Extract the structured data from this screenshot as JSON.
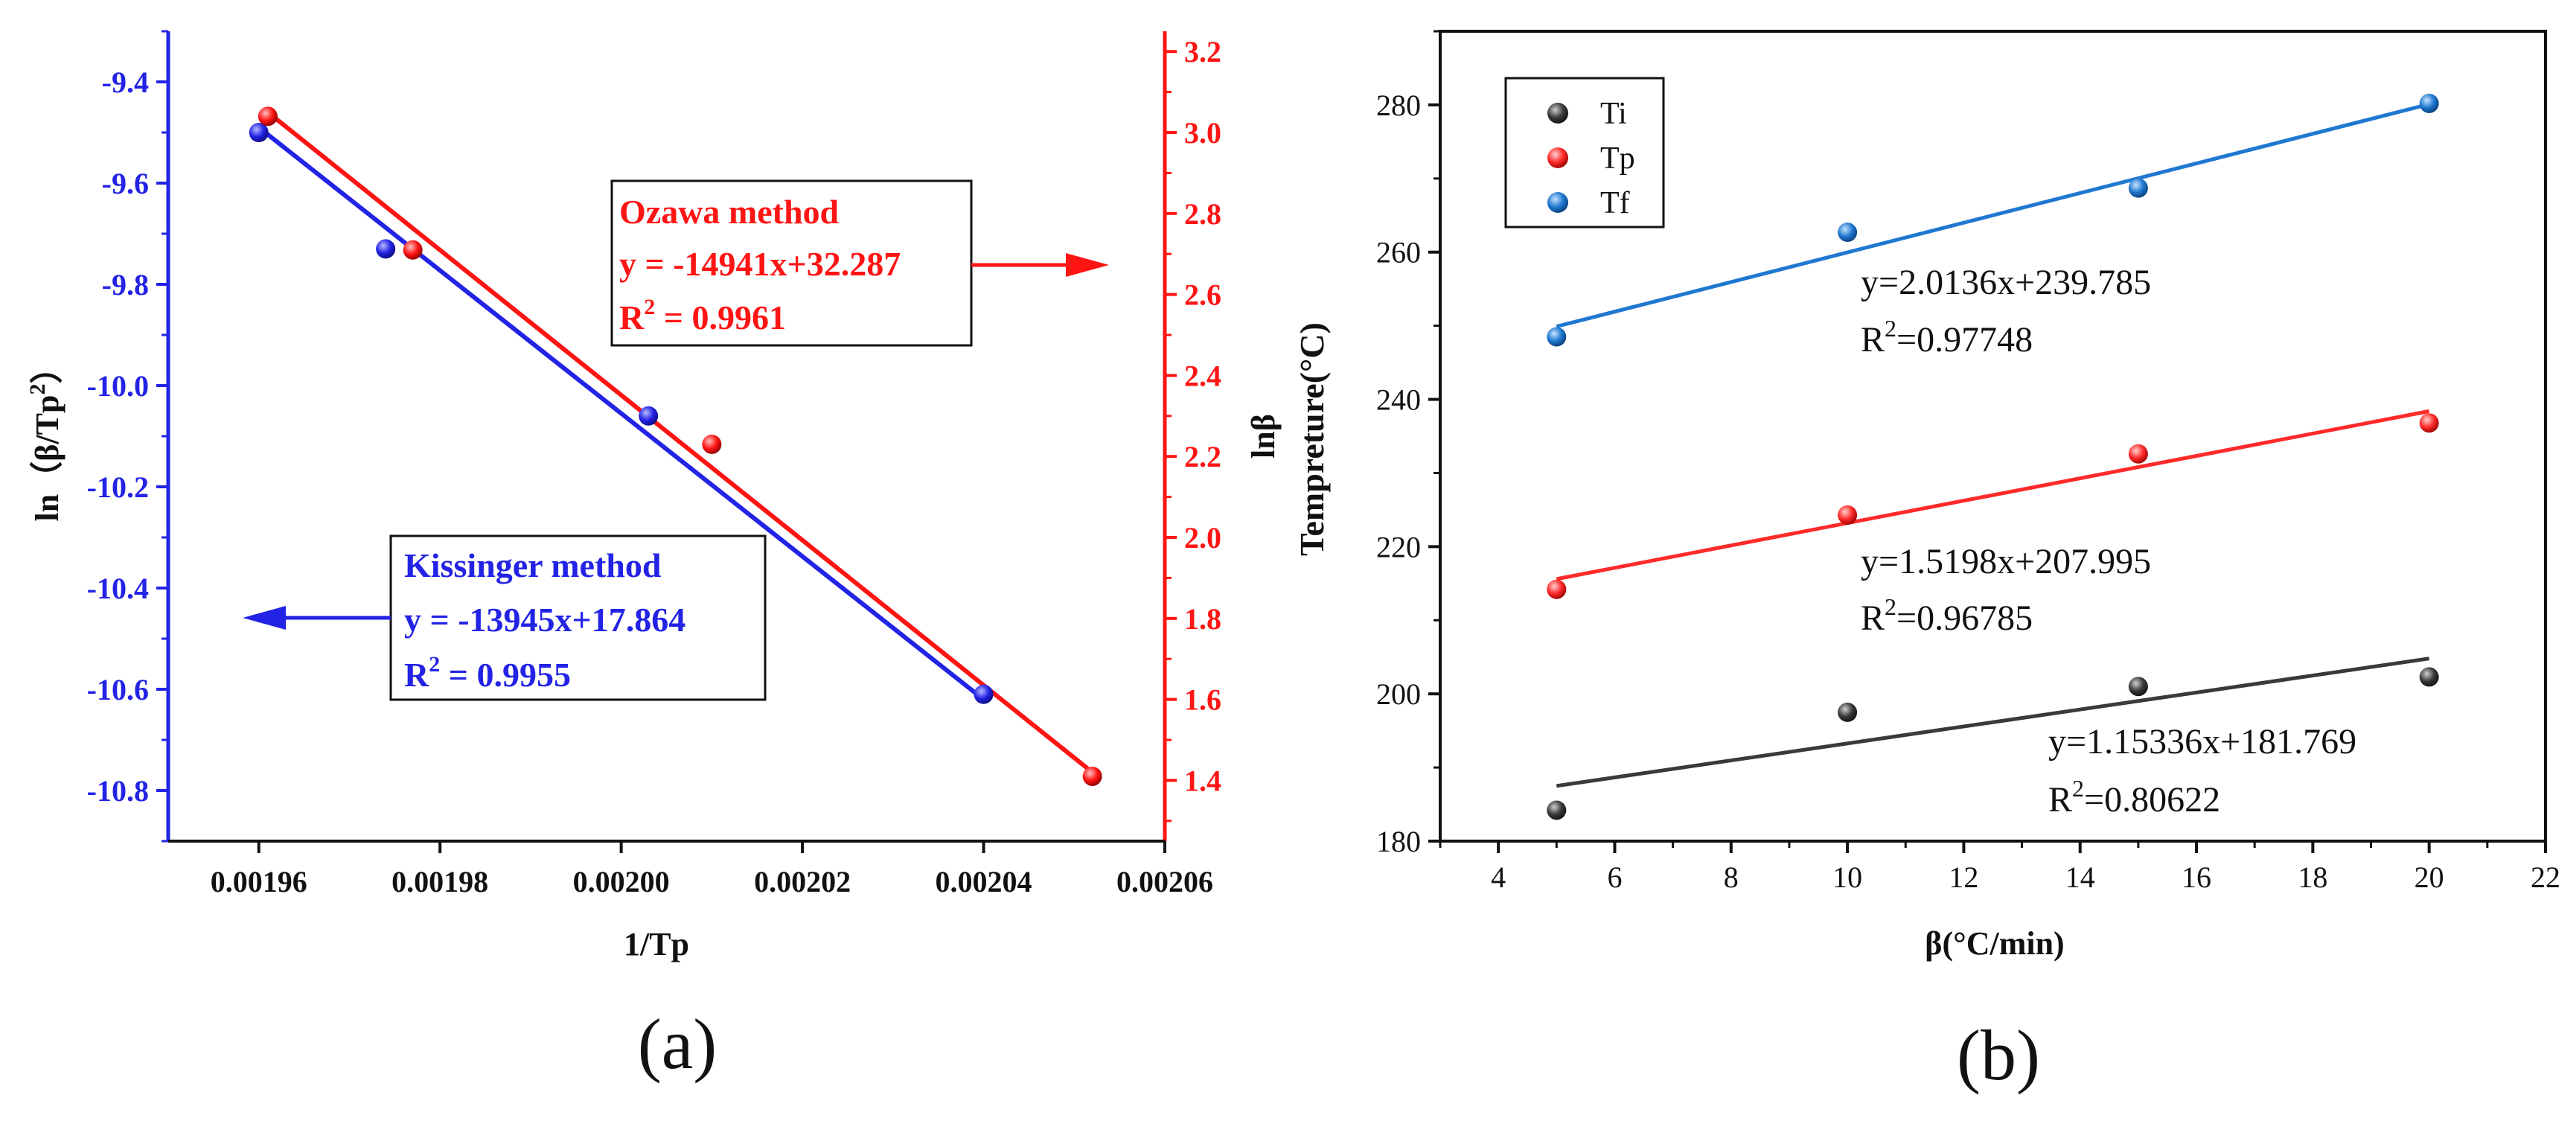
{
  "chart_data": [
    {
      "type": "scatter",
      "panel_label": "(a)",
      "xlabel": "1/Tp",
      "ylabel_left_main": "ln（β/Tp",
      "ylabel_left_sup": "2",
      "ylabel_left_tail": "）",
      "ylabel_right": "lnβ",
      "xlim": [
        0.00195,
        0.00206
      ],
      "ylim_left": [
        -10.9,
        -9.3
      ],
      "ylim_right": [
        1.25,
        3.25
      ],
      "xticks": [
        "0.00196",
        "0.00198",
        "0.00200",
        "0.00202",
        "0.00204",
        "0.00206"
      ],
      "yticks_left": [
        "-9.4",
        "-9.6",
        "-9.8",
        "-10.0",
        "-10.2",
        "-10.4",
        "-10.6",
        "-10.8"
      ],
      "yticks_right": [
        "3.2",
        "3.0",
        "2.8",
        "2.6",
        "2.4",
        "2.2",
        "2.0",
        "1.8",
        "1.6",
        "1.4"
      ],
      "series": [
        {
          "name": "Kissinger method",
          "axis": "left",
          "color": "#2323e6",
          "x": [
            0.00196,
            0.001974,
            0.002003,
            0.00204
          ],
          "y": [
            -9.5,
            -9.73,
            -10.06,
            -10.61
          ],
          "fit_line": {
            "x": [
              0.00196,
              0.00204
            ],
            "y": [
              -9.49,
              -10.62
            ]
          },
          "eq": "y = -13945x+17.864",
          "r2_prefix": "R",
          "r2_sup": "2",
          "r2_value": " = 0.9955"
        },
        {
          "name": "Ozawa method",
          "axis": "right",
          "color": "#ff1414",
          "x": [
            0.001961,
            0.001977,
            0.00201,
            0.002052
          ],
          "y": [
            3.04,
            2.71,
            2.23,
            1.41
          ],
          "fit_line": {
            "x": [
              0.001961,
              0.002052
            ],
            "y": [
              3.05,
              1.42
            ]
          },
          "eq": "y = -14941x+32.287",
          "r2_prefix": "R",
          "r2_sup": "2",
          "r2_value": " = 0.9961"
        }
      ]
    },
    {
      "type": "scatter",
      "panel_label": "(b)",
      "xlabel": "β(°C/min)",
      "ylabel": "Tempreture(°C)",
      "xlim": [
        3,
        22
      ],
      "ylim": [
        180,
        290
      ],
      "xticks": [
        "4",
        "6",
        "8",
        "10",
        "12",
        "14",
        "16",
        "18",
        "20",
        "22"
      ],
      "yticks": [
        "180",
        "200",
        "220",
        "240",
        "260",
        "280"
      ],
      "legend_position": "top-left",
      "series": [
        {
          "name": "Ti",
          "color": "#3a3a3a",
          "x": [
            5,
            10,
            15,
            20
          ],
          "y": [
            184.2,
            197.5,
            201,
            202.3
          ],
          "fit_line": {
            "x": [
              5,
              20
            ],
            "y": [
              187.5,
              204.8
            ]
          },
          "eq": "y=1.15336x+181.769",
          "r2_prefix": "R",
          "r2_sup": "2",
          "r2_value": "=0.80622"
        },
        {
          "name": "Tp",
          "color": "#ff2a2a",
          "x": [
            5,
            10,
            15,
            20
          ],
          "y": [
            214.2,
            224.3,
            232.6,
            236.8
          ],
          "fit_line": {
            "x": [
              5,
              20
            ],
            "y": [
              215.6,
              238.4
            ]
          },
          "eq": "y=1.5198x+207.995",
          "r2_prefix": "R",
          "r2_sup": "2",
          "r2_value": "=0.96785"
        },
        {
          "name": "Tf",
          "color": "#1f78d0",
          "x": [
            5,
            10,
            15,
            20
          ],
          "y": [
            248.5,
            262.7,
            268.7,
            280.2
          ],
          "fit_line": {
            "x": [
              5,
              20
            ],
            "y": [
              249.9,
              280.1
            ]
          },
          "eq": "y=2.0136x+239.785",
          "r2_prefix": "R",
          "r2_sup": "2",
          "r2_value": "=0.97748"
        }
      ]
    }
  ]
}
